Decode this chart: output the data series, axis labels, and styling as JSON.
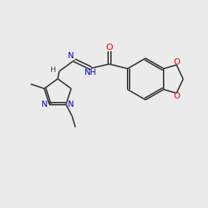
{
  "background_color": "#ebebeb",
  "bond_color": "#3a3a3a",
  "N_color": "#0000cc",
  "O_color": "#ff0000",
  "C_color": "#3a3a3a",
  "figsize": [
    3.0,
    3.0
  ],
  "dpi": 100,
  "xlim": [
    0,
    10
  ],
  "ylim": [
    0,
    10
  ],
  "lw": 1.4,
  "fs": 8.5,
  "fs_small": 7.5
}
